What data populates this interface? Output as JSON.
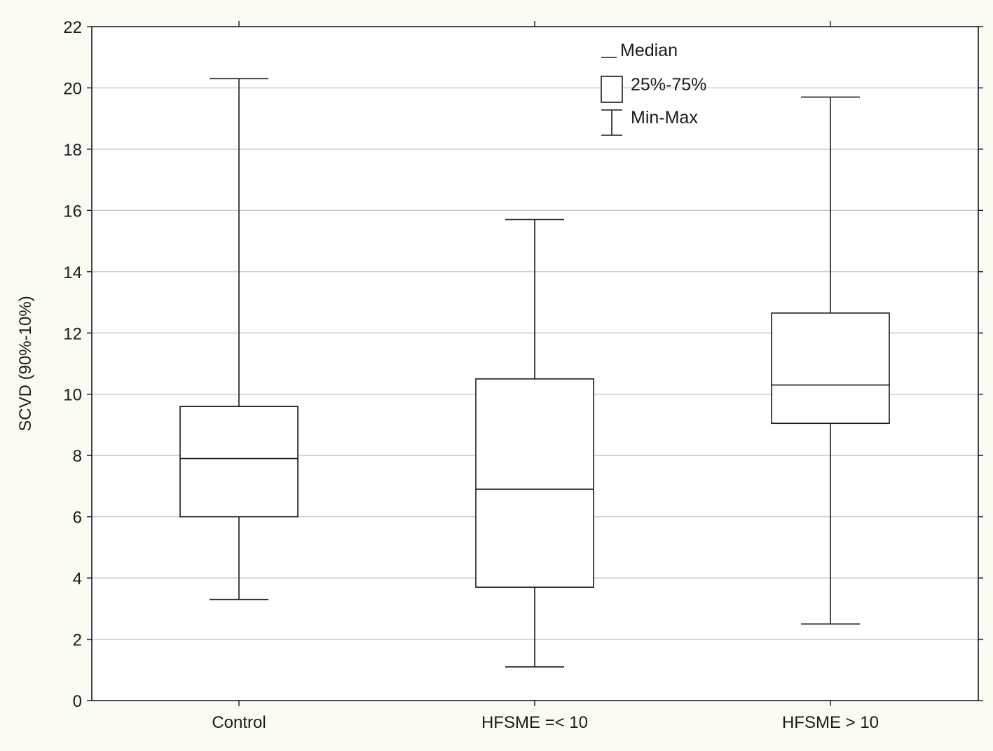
{
  "chart_data": {
    "type": "boxplot",
    "title": "",
    "xlabel": "",
    "ylabel": "SCVD (90%-10%)",
    "ylim": [
      0,
      22
    ],
    "yticks": [
      0,
      2,
      4,
      6,
      8,
      10,
      12,
      14,
      16,
      18,
      20,
      22
    ],
    "grid": true,
    "legend_position": "top-center",
    "legend": [
      {
        "symbol": "median",
        "label": "Median"
      },
      {
        "symbol": "box",
        "label": "25%-75%"
      },
      {
        "symbol": "whisker",
        "label": "Min-Max"
      }
    ],
    "categories": [
      "Control",
      "HFSME =< 10",
      "HFSME > 10"
    ],
    "series": [
      {
        "category": "Control",
        "min": 3.3,
        "q1": 6.0,
        "median": 7.9,
        "q3": 9.6,
        "max": 20.3
      },
      {
        "category": "HFSME =< 10",
        "min": 1.1,
        "q1": 3.7,
        "median": 6.9,
        "q3": 10.5,
        "max": 15.7
      },
      {
        "category": "HFSME > 10",
        "min": 2.5,
        "q1": 9.05,
        "median": 10.3,
        "q3": 12.65,
        "max": 19.7
      }
    ]
  },
  "colors": {
    "background": "#fbfaf3",
    "plot_background": "#ffffff",
    "grid": "#c8c8c8",
    "stroke": "#1a1a1a"
  }
}
